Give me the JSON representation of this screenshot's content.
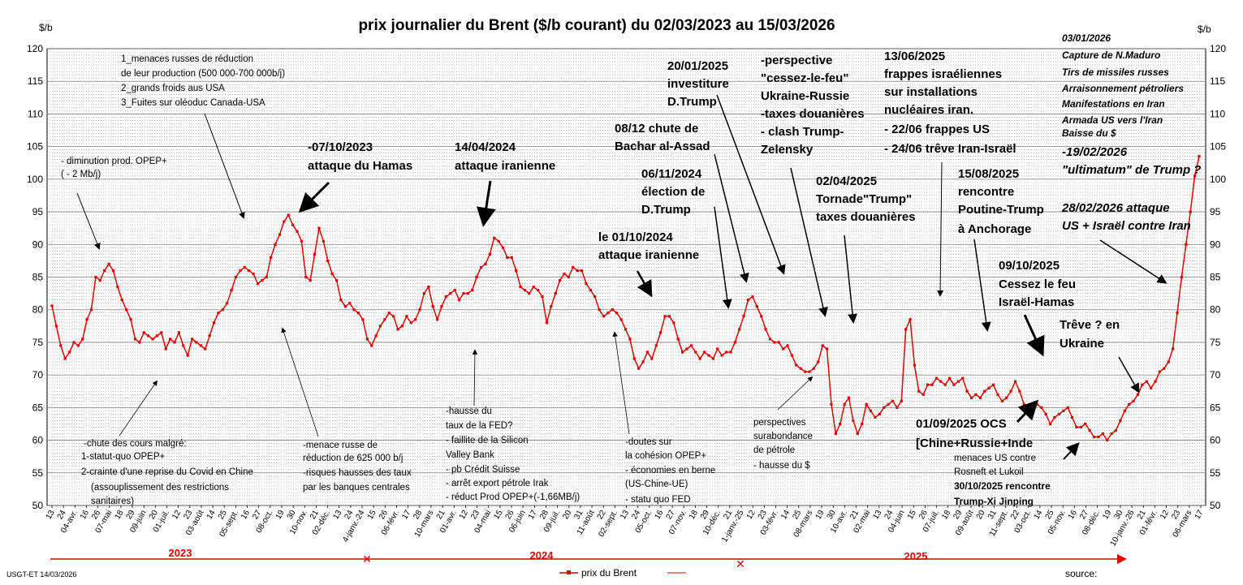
{
  "chart_data": {
    "type": "line",
    "title": "prix  journalier du  Brent ($/b courant) du 02/03/2023  au  15/03/2026",
    "ylabel_left": "$/b",
    "ylabel_right": "$/b",
    "ylim": [
      50,
      120
    ],
    "yticks": [
      50,
      55,
      60,
      65,
      70,
      75,
      80,
      85,
      90,
      95,
      100,
      105,
      110,
      115,
      120
    ],
    "grid": "on",
    "x_ticks": [
      "13",
      "24",
      "04-avr.",
      "16",
      "26",
      "07-mai",
      "18",
      "29",
      "09-juin",
      "20",
      "01-juil.",
      "12",
      "23",
      "03-août",
      "14",
      "25",
      "05-sept.",
      "16",
      "27",
      "08-oct.",
      "19",
      "30",
      "10-nov.",
      "21",
      "02-déc.",
      "13",
      "24",
      "4-janv.-24",
      "15",
      "26",
      "06-févr.",
      "17",
      "28",
      "10-mars",
      "21",
      "01-avr.",
      "12",
      "23",
      "04-mai",
      "15",
      "26",
      "06-juin",
      "17",
      "28",
      "09-juil.",
      "20",
      "31",
      "11-août",
      "22",
      "02-sept.",
      "13",
      "24",
      "05-oct.",
      "16",
      "27",
      "07-nov.",
      "18",
      "29",
      "10-déc.",
      "21",
      "1-janv.-25",
      "12",
      "23",
      "03-févr.",
      "14",
      "25",
      "08-mars",
      "19",
      "30",
      "10-avr.",
      "21",
      "02-mai",
      "13",
      "24",
      "04-juin",
      "15",
      "26",
      "07-juil.",
      "18",
      "29",
      "09-août",
      "20",
      "31",
      "11-sept.",
      "22",
      "03-oct.",
      "14",
      "25",
      "05-nov.",
      "16",
      "27",
      "08-déc.",
      "19",
      "30",
      "10-janv.-26",
      "21",
      "01-févr.",
      "12",
      "23",
      "06-mars",
      "17"
    ],
    "series": [
      {
        "name": "prix du Brent",
        "color": "#e00000",
        "values": [
          80.6,
          77.5,
          74.5,
          72.5,
          73.5,
          75.0,
          74.5,
          75.5,
          78.5,
          80.0,
          85.0,
          84.5,
          86.0,
          87.0,
          86.0,
          83.5,
          81.5,
          80.0,
          78.5,
          75.5,
          75.0,
          76.5,
          76.0,
          75.5,
          76.0,
          76.5,
          74.0,
          75.5,
          75.0,
          76.5,
          74.5,
          73.0,
          75.5,
          75.0,
          74.5,
          74.0,
          76.0,
          78.0,
          79.5,
          80.0,
          81.0,
          83.0,
          85.0,
          86.0,
          86.5,
          86.0,
          85.5,
          84.0,
          84.5,
          85.0,
          88.0,
          90.0,
          91.5,
          93.5,
          94.5,
          93.0,
          92.0,
          90.5,
          85.0,
          84.5,
          88.5,
          92.5,
          90.5,
          87.5,
          85.5,
          84.5,
          81.5,
          80.5,
          81.0,
          80.0,
          79.5,
          78.5,
          75.5,
          74.5,
          76.0,
          77.5,
          78.5,
          79.5,
          79.0,
          77.0,
          77.5,
          79.0,
          78.0,
          78.5,
          80.0,
          82.5,
          83.5,
          80.5,
          78.5,
          80.5,
          82.0,
          82.5,
          83.0,
          81.5,
          82.5,
          82.5,
          83.0,
          85.0,
          86.5,
          87.0,
          88.5,
          91.0,
          90.5,
          89.5,
          88.0,
          88.0,
          86.0,
          83.5,
          83.0,
          82.5,
          83.5,
          83.0,
          82.0,
          78.0,
          80.5,
          82.5,
          84.5,
          85.5,
          85.0,
          86.5,
          86.0,
          86.0,
          84.0,
          83.0,
          82.0,
          80.0,
          79.0,
          79.5,
          80.0,
          79.5,
          78.5,
          77.0,
          75.5,
          72.5,
          71.0,
          72.0,
          73.5,
          72.5,
          74.5,
          76.5,
          79.0,
          79.0,
          78.0,
          75.5,
          73.5,
          74.0,
          74.5,
          73.5,
          72.5,
          73.5,
          73.0,
          72.5,
          74.0,
          73.0,
          73.5,
          73.5,
          75.0,
          77.0,
          79.0,
          81.5,
          82.0,
          80.5,
          79.0,
          77.0,
          75.5,
          75.0,
          75.0,
          74.0,
          74.5,
          73.0,
          71.5,
          71.0,
          70.5,
          70.5,
          71.0,
          72.0,
          74.5,
          74.0,
          65.5,
          61.0,
          62.5,
          65.5,
          66.5,
          63.0,
          61.0,
          62.5,
          65.5,
          64.5,
          63.5,
          64.0,
          65.0,
          65.5,
          66.0,
          65.0,
          66.0,
          77.0,
          78.5,
          71.5,
          67.5,
          67.0,
          68.5,
          68.5,
          69.5,
          69.0,
          68.5,
          69.5,
          68.5,
          69.0,
          69.5,
          67.5,
          66.5,
          67.0,
          66.5,
          67.5,
          68.0,
          68.5,
          67.0,
          66.0,
          66.5,
          67.5,
          69.0,
          67.5,
          65.5,
          65.0,
          64.5,
          65.5,
          65.0,
          64.0,
          62.5,
          63.5,
          64.0,
          64.5,
          65.0,
          63.5,
          62.0,
          62.0,
          62.5,
          61.5,
          60.5,
          60.5,
          61.0,
          60.0,
          61.0,
          61.5,
          63.0,
          64.5,
          65.5,
          66.0,
          67.0,
          68.5,
          69.0,
          68.0,
          69.0,
          70.5,
          71.0,
          72.0,
          74.0,
          79.5,
          85.0,
          90.0,
          95.0,
          100.5,
          103.5
        ]
      }
    ],
    "annotations": {
      "a1": "1_menaces russes de réduction",
      "a2": "de leur production (500 000-700  000b/j)",
      "a3": "2_grands froids aus USA",
      "a4": "3_Fuites sur oléoduc Canada-USA",
      "b1": "- diminution prod. OPEP+",
      "b2": "( - 2 Mb/j)",
      "c1": "-07/10/2023",
      "c2": "attaque  du Hamas",
      "d1": "14/04/2024",
      "d2": "attaque iranienne",
      "e1": "20/01/2025",
      "e2": "investiture",
      "e3": "D.Trump",
      "f1": "-perspective",
      "f2": "\"cessez-le-feu\"",
      "f3": "Ukraine-Russie",
      "f4": "-taxes douanières",
      "f5": "- clash Trump-",
      "f6": "Zelensky",
      "g1": "13/06/2025",
      "g2": "frappes  israéliennes",
      "g3": "sur installations",
      "g4": "nucléaires iran.",
      "g5": "- 22/06 frappes US",
      "g6": "- 24/06 trêve Iran-Israël",
      "h1": "03/01/2026",
      "h2": "Capture de N.Maduro",
      "h3": "Tirs de missiles russes",
      "h4": "Arraisonnement pétroliers",
      "h5": "Manifestations en Iran",
      "h6": "Armada US vers  l'Iran",
      "h7": "Baisse du $",
      "h8": "-19/02/2026",
      "h9": "\"ultimatum\" de Trump ?",
      "i1": "08/12 chute de",
      "i2": "Bachar al-Assad",
      "j1": "06/11/2024",
      "j2": "élection de",
      "j3": "D.Trump",
      "k1": "02/04/2025",
      "k2": "Tornade\"Trump\"",
      "k3": "taxes douanières",
      "l1": "15/08/2025",
      "l2": "rencontre",
      "l3": "Poutine-Trump",
      "l4": "à Anchorage",
      "m1": "28/02/2026  attaque",
      "m2": "US + Israël contre Iran",
      "n1": "le 01/10/2024",
      "n2": "attaque iranienne",
      "o1": "09/10/2025",
      "o2": "Cessez le feu",
      "o3": "Israël-Hamas",
      "p1": "Trêve ? en",
      "p2": "Ukraine",
      "q1": "-chute des cours malgré:",
      "q2": "1-statut-quo OPEP+",
      "q3": "2-crainte d'une reprise du Covid en Chine",
      "q4": "(assouplissement des restrictions",
      "q5": "sanitaires)",
      "r1": "-menace russe de",
      "r2": "réduction de 625 000  b/j",
      "r3": "-risques hausses des taux",
      "r4": "par les banques centrales",
      "s1": "-hausse du",
      "s2": "taux de la FED?",
      "s3": "- faillite de la Silicon",
      "s4": "Valley Bank",
      "s5": "- pb Crédit Suisse",
      "s6": "- arrêt export pétrole Irak",
      "s7": "- réduct Prod OPEP+(-1,66MB/j)",
      "t1": "-doutes sur",
      "t2": "la cohésion  OPEP+",
      "t3": "- économies en berne",
      "t4": "(US-Chine-UE)",
      "t5": "- statu quo FED",
      "u1": "perspectives",
      "u2": "surabondance",
      "u3": "de pétrole",
      "u4": "- hausse du $",
      "v1": "01/09/2025 OCS",
      "v2": "[Chine+Russie+Inde",
      "w1": "menaces US contre",
      "w2": "Rosneft et Lukoil",
      "w3": "30/10/2025  rencontre",
      "w4": "Trump-Xi Jinping"
    },
    "years": [
      "2023",
      "2024",
      "2025"
    ],
    "legend": "prix du Brent",
    "footer_left": "USGT-ET  14/03/2026",
    "footer_right": "source:"
  }
}
